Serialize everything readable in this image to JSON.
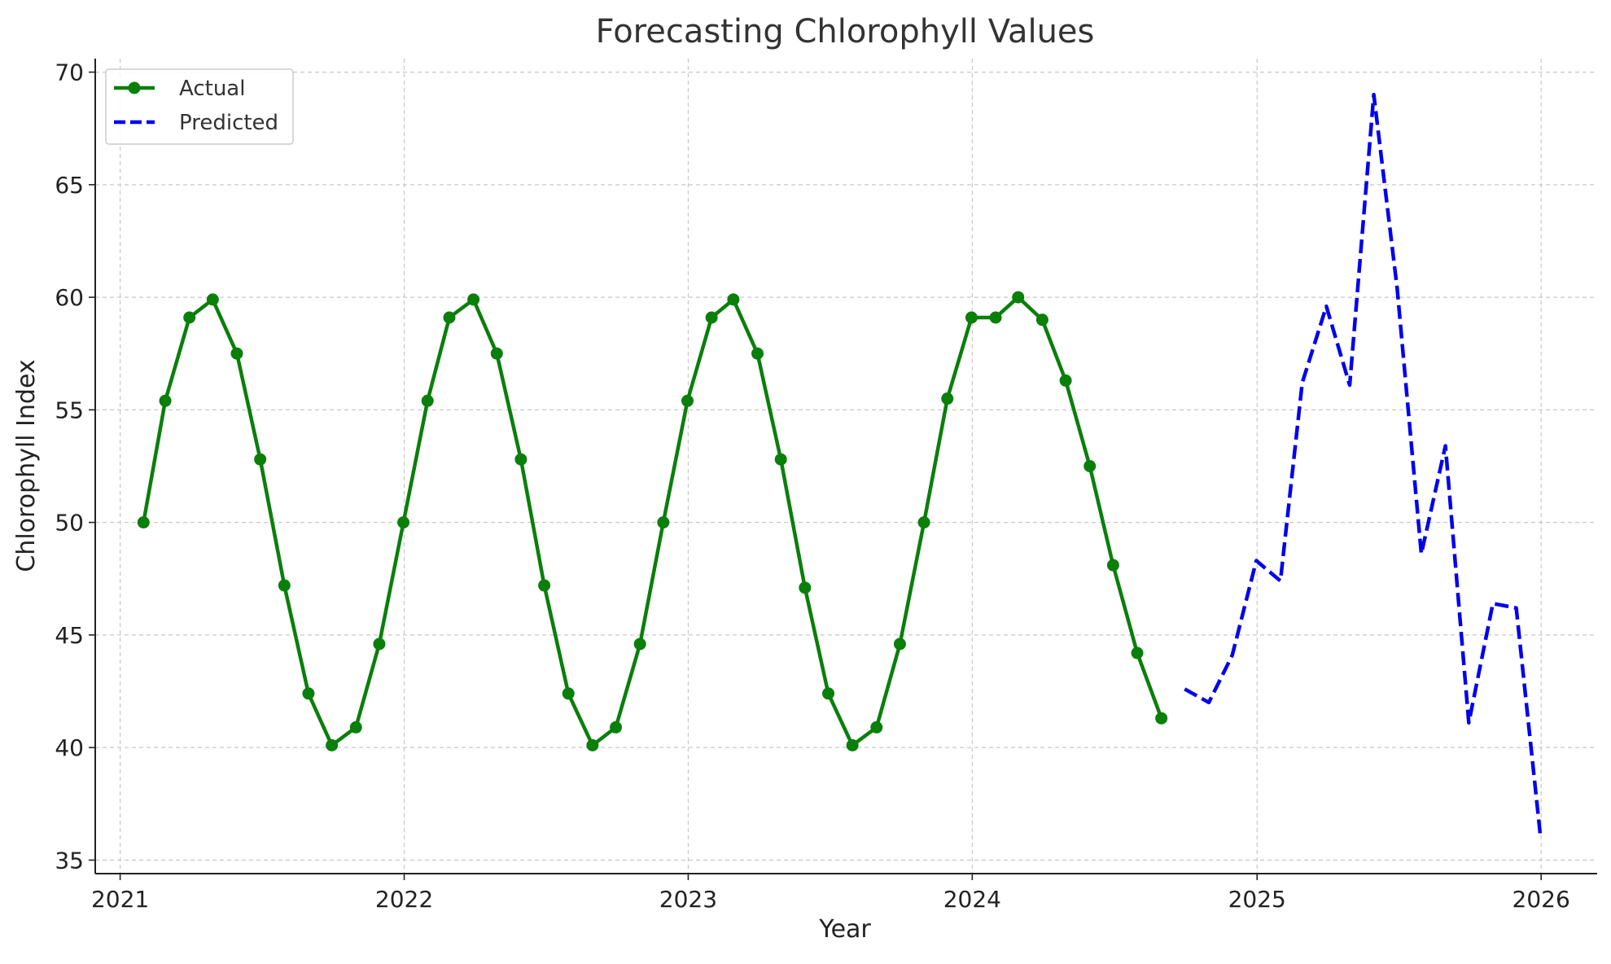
{
  "chart_data": {
    "type": "line",
    "title": "Forecasting Chlorophyll Values",
    "xlabel": "Year",
    "ylabel": "Chlorophyll Index",
    "xlim": [
      "2020-11-30",
      "2026-03-14"
    ],
    "ylim": [
      34.4,
      70.6
    ],
    "x_ticks": [
      {
        "date": "2021-01-01",
        "label": "2021"
      },
      {
        "date": "2022-01-01",
        "label": "2022"
      },
      {
        "date": "2023-01-01",
        "label": "2023"
      },
      {
        "date": "2024-01-01",
        "label": "2024"
      },
      {
        "date": "2025-01-01",
        "label": "2025"
      },
      {
        "date": "2026-01-01",
        "label": "2026"
      }
    ],
    "y_ticks": [
      35,
      40,
      45,
      50,
      55,
      60,
      65,
      70
    ],
    "grid": true,
    "legend": {
      "position": "top-left",
      "entries": [
        {
          "label": "Actual",
          "series": "Actual"
        },
        {
          "label": "Predicted",
          "series": "Predicted"
        }
      ]
    },
    "series": [
      {
        "name": "Actual",
        "color": "#0a7f0a",
        "line_style": "solid",
        "marker": "circle",
        "x": [
          "2021-01-31",
          "2021-02-28",
          "2021-03-31",
          "2021-04-30",
          "2021-05-31",
          "2021-06-30",
          "2021-07-31",
          "2021-08-31",
          "2021-09-30",
          "2021-10-31",
          "2021-11-30",
          "2021-12-31",
          "2022-01-31",
          "2022-02-28",
          "2022-03-31",
          "2022-04-30",
          "2022-05-31",
          "2022-06-30",
          "2022-07-31",
          "2022-08-31",
          "2022-09-30",
          "2022-10-31",
          "2022-11-30",
          "2022-12-31",
          "2023-01-31",
          "2023-02-28",
          "2023-03-31",
          "2023-04-30",
          "2023-05-31",
          "2023-06-30",
          "2023-07-31",
          "2023-08-31",
          "2023-09-30",
          "2023-10-31",
          "2023-11-30",
          "2023-12-31",
          "2024-01-31",
          "2024-02-29",
          "2024-03-31",
          "2024-04-30",
          "2024-05-31",
          "2024-06-30",
          "2024-07-31",
          "2024-08-31"
        ],
        "values": [
          50.0,
          55.4,
          59.1,
          59.9,
          57.5,
          52.8,
          47.2,
          42.4,
          40.1,
          40.9,
          44.6,
          50.0,
          55.4,
          59.1,
          59.9,
          57.5,
          52.8,
          47.2,
          42.4,
          40.1,
          40.9,
          44.6,
          50.0,
          55.4,
          59.1,
          59.9,
          57.5,
          52.8,
          47.1,
          42.4,
          40.1,
          40.9,
          44.6,
          50.0,
          55.5,
          59.1,
          59.1,
          60.0,
          59.0,
          56.3,
          52.5,
          48.1,
          44.2,
          41.3
        ]
      },
      {
        "name": "Predicted",
        "color": "#0000ee",
        "line_style": "dashed",
        "marker": "none",
        "x": [
          "2024-09-30",
          "2024-10-31",
          "2024-11-30",
          "2024-12-31",
          "2025-01-31",
          "2025-02-28",
          "2025-03-31",
          "2025-04-30",
          "2025-05-31",
          "2025-06-30",
          "2025-07-31",
          "2025-08-31",
          "2025-09-30",
          "2025-10-31",
          "2025-11-30",
          "2025-12-31"
        ],
        "values": [
          42.6,
          42.0,
          44.1,
          48.3,
          47.4,
          56.2,
          59.6,
          56.1,
          69.0,
          60.4,
          48.6,
          53.4,
          41.1,
          46.4,
          46.2,
          36.1
        ]
      }
    ]
  }
}
